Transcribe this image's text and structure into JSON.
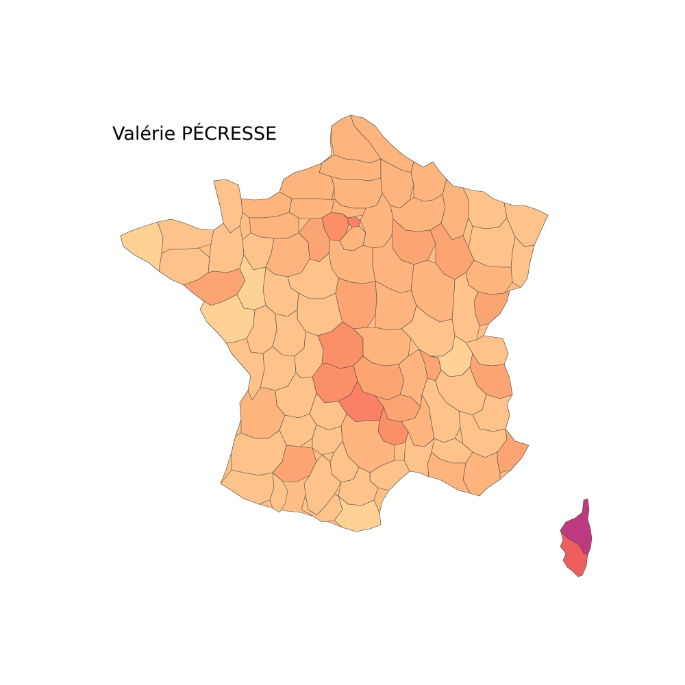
{
  "title": "Valérie PÉCRESSE",
  "colors": {
    "background": "#ffffff",
    "border": "#4a4a4a",
    "level_1": "#fed194",
    "level_2": "#fdc38a",
    "level_3": "#fdb47d",
    "level_4": "#fca572",
    "level_5": "#fb8f67",
    "level_6": "#fa8066",
    "level_7": "#ec5f5e",
    "level_8": "#bd3a80"
  }
}
